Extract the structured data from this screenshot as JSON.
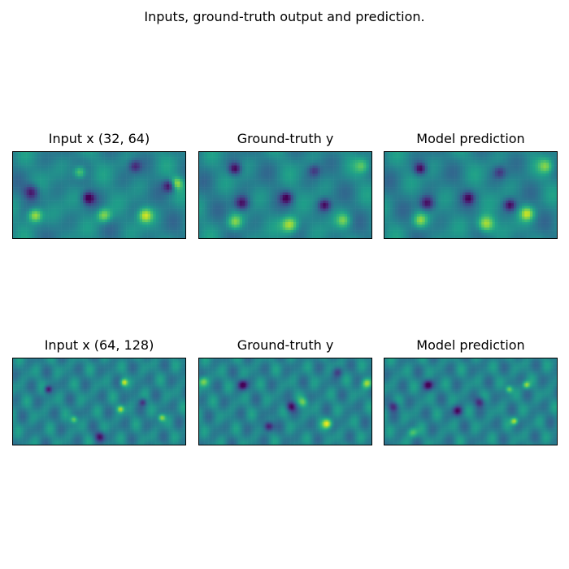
{
  "figure": {
    "title": "Inputs, ground-truth output and prediction."
  },
  "chart_data": [
    {
      "type": "heatmap",
      "title": "Input x (32, 64)",
      "shape": [
        32,
        64
      ],
      "colormap": "viridis",
      "features": [
        {
          "x": 0.12,
          "y": 0.72,
          "v": 1.0,
          "s": 0.06
        },
        {
          "x": 0.52,
          "y": 0.72,
          "v": 0.8,
          "s": 0.06
        },
        {
          "x": 0.76,
          "y": 0.72,
          "v": 0.9,
          "s": 0.06
        },
        {
          "x": 0.94,
          "y": 0.35,
          "v": 0.85,
          "s": 0.05
        },
        {
          "x": 0.38,
          "y": 0.22,
          "v": 0.75,
          "s": 0.05
        },
        {
          "x": 0.1,
          "y": 0.45,
          "v": -0.8,
          "s": 0.06
        },
        {
          "x": 0.43,
          "y": 0.52,
          "v": -0.9,
          "s": 0.05
        },
        {
          "x": 0.9,
          "y": 0.38,
          "v": -0.9,
          "s": 0.05
        },
        {
          "x": 0.7,
          "y": 0.15,
          "v": -0.6,
          "s": 0.05
        }
      ]
    },
    {
      "type": "heatmap",
      "title": "Ground-truth y",
      "shape": [
        32,
        64
      ],
      "colormap": "viridis",
      "features": [
        {
          "x": 0.52,
          "y": 0.83,
          "v": 1.0,
          "s": 0.07
        },
        {
          "x": 0.2,
          "y": 0.8,
          "v": 0.7,
          "s": 0.06
        },
        {
          "x": 0.83,
          "y": 0.78,
          "v": 0.6,
          "s": 0.06
        },
        {
          "x": 0.94,
          "y": 0.15,
          "v": 0.5,
          "s": 0.06
        },
        {
          "x": 0.2,
          "y": 0.18,
          "v": -0.9,
          "s": 0.05
        },
        {
          "x": 0.24,
          "y": 0.58,
          "v": -0.9,
          "s": 0.06
        },
        {
          "x": 0.5,
          "y": 0.52,
          "v": -0.8,
          "s": 0.05
        },
        {
          "x": 0.72,
          "y": 0.6,
          "v": -0.8,
          "s": 0.05
        },
        {
          "x": 0.66,
          "y": 0.2,
          "v": -0.5,
          "s": 0.05
        }
      ]
    },
    {
      "type": "heatmap",
      "title": "Model prediction",
      "shape": [
        32,
        64
      ],
      "colormap": "viridis",
      "features": [
        {
          "x": 0.58,
          "y": 0.82,
          "v": 1.0,
          "s": 0.07
        },
        {
          "x": 0.82,
          "y": 0.7,
          "v": 0.85,
          "s": 0.06
        },
        {
          "x": 0.2,
          "y": 0.78,
          "v": 0.7,
          "s": 0.06
        },
        {
          "x": 0.93,
          "y": 0.15,
          "v": 0.6,
          "s": 0.06
        },
        {
          "x": 0.2,
          "y": 0.18,
          "v": -0.9,
          "s": 0.05
        },
        {
          "x": 0.24,
          "y": 0.58,
          "v": -0.9,
          "s": 0.06
        },
        {
          "x": 0.48,
          "y": 0.52,
          "v": -0.7,
          "s": 0.05
        },
        {
          "x": 0.72,
          "y": 0.6,
          "v": -0.8,
          "s": 0.05
        },
        {
          "x": 0.66,
          "y": 0.22,
          "v": -0.5,
          "s": 0.05
        }
      ]
    },
    {
      "type": "heatmap",
      "title": "Input x (64, 128)",
      "shape": [
        64,
        128
      ],
      "colormap": "viridis",
      "features": [
        {
          "x": 0.64,
          "y": 0.27,
          "v": 0.9,
          "s": 0.03
        },
        {
          "x": 0.62,
          "y": 0.58,
          "v": 0.8,
          "s": 0.03
        },
        {
          "x": 0.86,
          "y": 0.68,
          "v": 0.8,
          "s": 0.03
        },
        {
          "x": 0.35,
          "y": 0.7,
          "v": 0.7,
          "s": 0.03
        },
        {
          "x": 0.2,
          "y": 0.35,
          "v": -0.8,
          "s": 0.03
        },
        {
          "x": 0.5,
          "y": 0.9,
          "v": -0.8,
          "s": 0.04
        },
        {
          "x": 0.75,
          "y": 0.5,
          "v": -0.6,
          "s": 0.03
        }
      ]
    },
    {
      "type": "heatmap",
      "title": "Ground-truth y",
      "shape": [
        64,
        128
      ],
      "colormap": "viridis",
      "features": [
        {
          "x": 0.74,
          "y": 0.75,
          "v": 1.0,
          "s": 0.04
        },
        {
          "x": 0.97,
          "y": 0.28,
          "v": 0.8,
          "s": 0.04
        },
        {
          "x": 0.02,
          "y": 0.26,
          "v": 0.7,
          "s": 0.04
        },
        {
          "x": 0.6,
          "y": 0.5,
          "v": 0.6,
          "s": 0.04
        },
        {
          "x": 0.25,
          "y": 0.3,
          "v": -0.9,
          "s": 0.04
        },
        {
          "x": 0.4,
          "y": 0.78,
          "v": -0.9,
          "s": 0.04
        },
        {
          "x": 0.53,
          "y": 0.55,
          "v": -0.8,
          "s": 0.04
        },
        {
          "x": 0.8,
          "y": 0.15,
          "v": -0.5,
          "s": 0.04
        }
      ]
    },
    {
      "type": "heatmap",
      "title": "Model prediction",
      "shape": [
        64,
        128
      ],
      "colormap": "viridis",
      "features": [
        {
          "x": 0.75,
          "y": 0.72,
          "v": 0.9,
          "s": 0.03
        },
        {
          "x": 0.72,
          "y": 0.35,
          "v": 0.7,
          "s": 0.03
        },
        {
          "x": 0.82,
          "y": 0.3,
          "v": 0.8,
          "s": 0.03
        },
        {
          "x": 0.16,
          "y": 0.85,
          "v": 0.6,
          "s": 0.04
        },
        {
          "x": 0.25,
          "y": 0.3,
          "v": -0.9,
          "s": 0.04
        },
        {
          "x": 0.42,
          "y": 0.6,
          "v": -0.8,
          "s": 0.04
        },
        {
          "x": 0.55,
          "y": 0.5,
          "v": -0.7,
          "s": 0.04
        },
        {
          "x": 0.05,
          "y": 0.55,
          "v": -0.7,
          "s": 0.04
        }
      ]
    }
  ]
}
